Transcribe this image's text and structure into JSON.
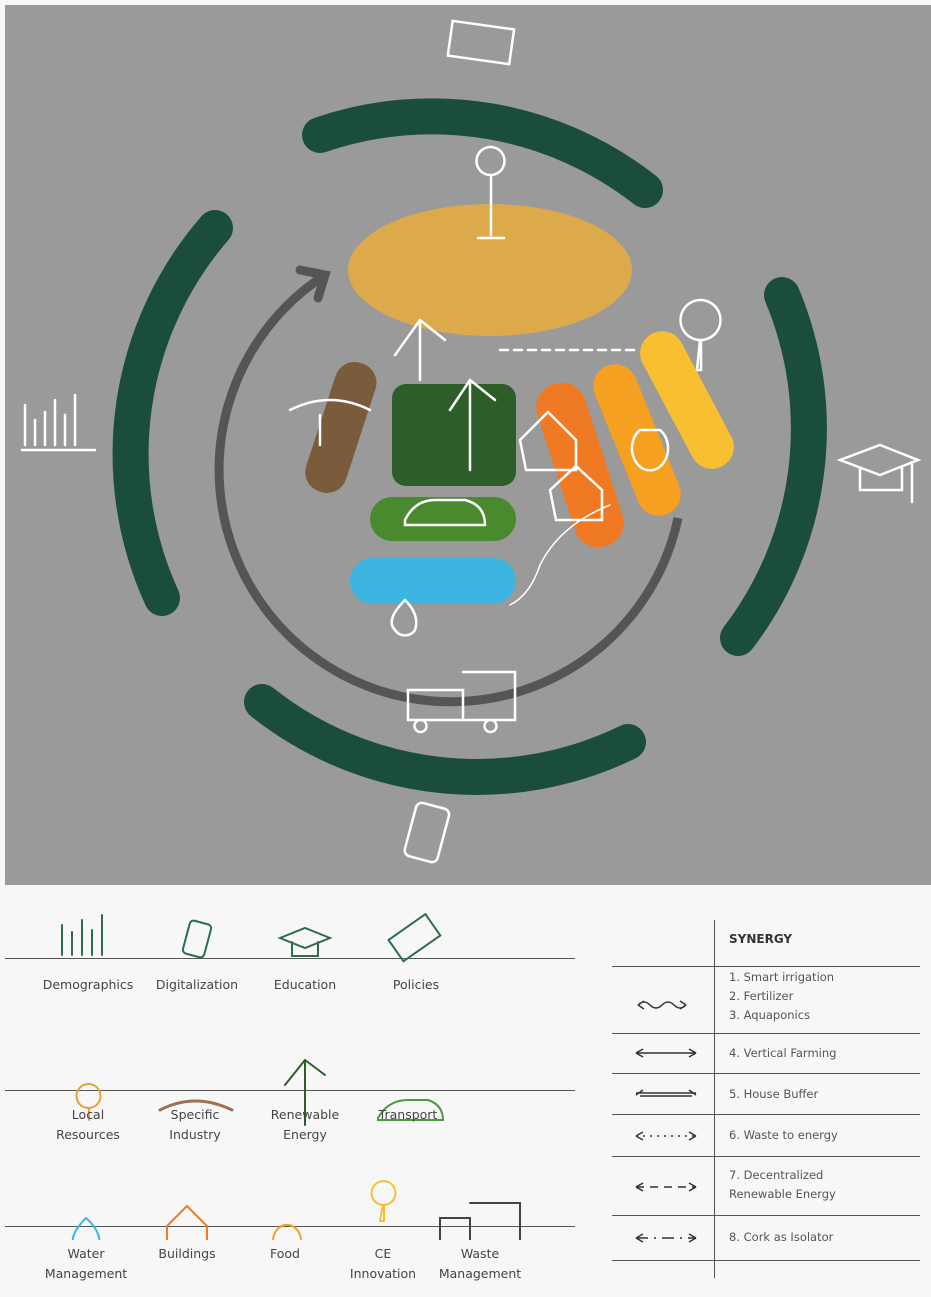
{
  "legend": {
    "rows": [
      [
        "Demographics",
        "Digitalization",
        "Education",
        "Policies"
      ],
      [
        "Local Resources",
        "Specific Industry",
        "Renewable Energy",
        "Transport"
      ],
      [
        "Water Management",
        "Buildings",
        "Food",
        "CE Innovation",
        "Waste Management"
      ]
    ]
  },
  "synergy": {
    "title": "SYNERGY",
    "rows": [
      [
        "1. Smart irrigation",
        "2. Fertilizer",
        "3. Aquaponics"
      ],
      [
        "4. Vertical Farming"
      ],
      [
        "5. House Buffer"
      ],
      [
        "6. Waste to energy"
      ],
      [
        "7. Decentralized Renewable Energy"
      ],
      [
        "8. Cork as Isolator"
      ]
    ]
  }
}
